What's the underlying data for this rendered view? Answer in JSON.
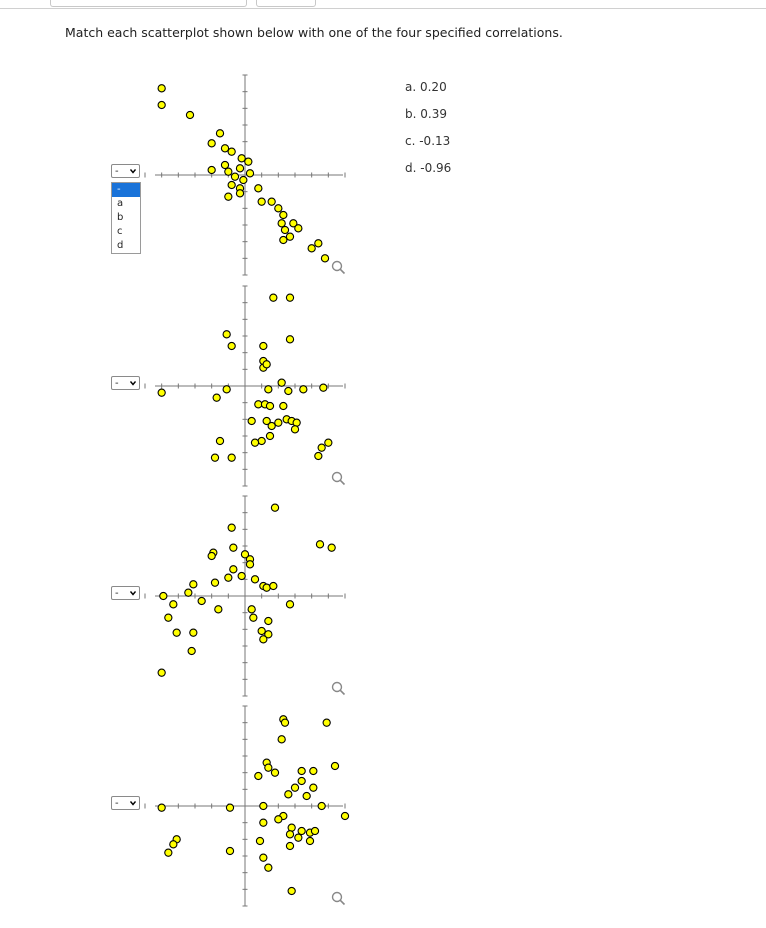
{
  "instruction": "Match each scatterplot shown below with one of the four specified correlations.",
  "answers": [
    "a. 0.20",
    "b. 0.39",
    "c. -0.13",
    "d. -0.96"
  ],
  "select_placeholder": "-",
  "menu_options": [
    "-",
    "a",
    "b",
    "c",
    "d"
  ],
  "colors": {
    "point_fill": "#ffff00",
    "point_stroke": "#000000",
    "axis": "#777777",
    "menu_highlight": "#1a73d9"
  },
  "chart_data": [
    {
      "type": "scatter",
      "xlim": [
        -6,
        6
      ],
      "ylim": [
        -6,
        6
      ],
      "grid": false,
      "magnifier_icon": "magnifier-icon",
      "points": [
        [
          -5,
          5.2
        ],
        [
          -5,
          4.2
        ],
        [
          -3.3,
          3.6
        ],
        [
          -1.5,
          2.5
        ],
        [
          -2,
          1.9
        ],
        [
          -1.2,
          1.6
        ],
        [
          -0.8,
          1.4
        ],
        [
          -0.2,
          1.0
        ],
        [
          0.2,
          0.8
        ],
        [
          -1.2,
          0.6
        ],
        [
          -2.0,
          0.3
        ],
        [
          -1.0,
          0.2
        ],
        [
          -0.6,
          -0.1
        ],
        [
          -0.3,
          0.4
        ],
        [
          0.3,
          0.1
        ],
        [
          -0.1,
          -0.3
        ],
        [
          -0.8,
          -0.6
        ],
        [
          -0.3,
          -0.8
        ],
        [
          -0.3,
          -1.1
        ],
        [
          -1.0,
          -1.3
        ],
        [
          0.8,
          -0.8
        ],
        [
          1.0,
          -1.6
        ],
        [
          1.6,
          -1.6
        ],
        [
          2.0,
          -2.0
        ],
        [
          2.3,
          -2.4
        ],
        [
          2.2,
          -2.9
        ],
        [
          2.4,
          -3.3
        ],
        [
          2.9,
          -2.9
        ],
        [
          3.2,
          -3.2
        ],
        [
          2.7,
          -3.7
        ],
        [
          2.3,
          -3.9
        ],
        [
          4.0,
          -4.4
        ],
        [
          4.4,
          -4.1
        ],
        [
          4.8,
          -5.0
        ]
      ]
    },
    {
      "type": "scatter",
      "xlim": [
        -6,
        6
      ],
      "ylim": [
        -6,
        6
      ],
      "grid": false,
      "magnifier_icon": "magnifier-icon",
      "points": [
        [
          1.7,
          5.3
        ],
        [
          2.7,
          5.3
        ],
        [
          -1.1,
          3.1
        ],
        [
          -0.8,
          2.4
        ],
        [
          1.1,
          2.4
        ],
        [
          2.7,
          2.8
        ],
        [
          1.1,
          1.5
        ],
        [
          1.1,
          1.1
        ],
        [
          1.3,
          1.3
        ],
        [
          -5.0,
          -0.4
        ],
        [
          -1.7,
          -0.7
        ],
        [
          -1.1,
          -0.2
        ],
        [
          1.4,
          -0.2
        ],
        [
          2.2,
          0.2
        ],
        [
          2.6,
          -0.3
        ],
        [
          3.5,
          -0.2
        ],
        [
          4.7,
          -0.1
        ],
        [
          0.8,
          -1.1
        ],
        [
          1.2,
          -1.1
        ],
        [
          1.5,
          -1.2
        ],
        [
          2.3,
          -1.2
        ],
        [
          0.4,
          -2.1
        ],
        [
          1.3,
          -2.1
        ],
        [
          1.6,
          -2.4
        ],
        [
          2.0,
          -2.2
        ],
        [
          2.5,
          -2.0
        ],
        [
          2.8,
          -2.1
        ],
        [
          3.1,
          -2.2
        ],
        [
          3.0,
          -2.6
        ],
        [
          1.5,
          -3.0
        ],
        [
          1.0,
          -3.3
        ],
        [
          0.6,
          -3.4
        ],
        [
          -1.5,
          -3.3
        ],
        [
          -1.8,
          -4.3
        ],
        [
          -0.8,
          -4.3
        ],
        [
          4.4,
          -4.2
        ],
        [
          4.6,
          -3.7
        ],
        [
          5.0,
          -3.4
        ]
      ]
    },
    {
      "type": "scatter",
      "xlim": [
        -6,
        6
      ],
      "ylim": [
        -6,
        6
      ],
      "grid": false,
      "magnifier_icon": "magnifier-icon",
      "points": [
        [
          1.8,
          5.3
        ],
        [
          -0.8,
          4.1
        ],
        [
          -0.7,
          2.9
        ],
        [
          4.5,
          3.1
        ],
        [
          5.2,
          2.9
        ],
        [
          -1.9,
          2.6
        ],
        [
          -2.0,
          2.4
        ],
        [
          0.3,
          2.2
        ],
        [
          0.0,
          2.5
        ],
        [
          -0.7,
          1.6
        ],
        [
          0.3,
          1.9
        ],
        [
          -0.2,
          1.2
        ],
        [
          -1.0,
          1.1
        ],
        [
          -1.8,
          0.8
        ],
        [
          0.6,
          1.0
        ],
        [
          1.1,
          0.6
        ],
        [
          1.3,
          0.5
        ],
        [
          1.7,
          0.6
        ],
        [
          -3.1,
          0.7
        ],
        [
          -3.4,
          0.2
        ],
        [
          -2.6,
          -0.3
        ],
        [
          -4.9,
          0
        ],
        [
          -4.3,
          -0.5
        ],
        [
          -4.6,
          -1.3
        ],
        [
          -1.6,
          -0.8
        ],
        [
          0.4,
          -0.8
        ],
        [
          0.5,
          -1.3
        ],
        [
          1.4,
          -1.5
        ],
        [
          1.0,
          -2.1
        ],
        [
          1.4,
          -2.3
        ],
        [
          1.1,
          -2.6
        ],
        [
          2.7,
          -0.5
        ],
        [
          -3.1,
          -2.2
        ],
        [
          -4.1,
          -2.2
        ],
        [
          -3.2,
          -3.3
        ],
        [
          -5.0,
          -4.6
        ]
      ]
    },
    {
      "type": "scatter",
      "xlim": [
        -6,
        6
      ],
      "ylim": [
        -6,
        6
      ],
      "grid": false,
      "magnifier_icon": "magnifier-icon",
      "points": [
        [
          2.3,
          5.2
        ],
        [
          2.4,
          5.0
        ],
        [
          4.9,
          5.0
        ],
        [
          2.2,
          4.0
        ],
        [
          1.3,
          2.6
        ],
        [
          1.4,
          2.3
        ],
        [
          1.8,
          2.0
        ],
        [
          3.4,
          2.1
        ],
        [
          4.1,
          2.1
        ],
        [
          5.4,
          2.4
        ],
        [
          0.8,
          1.8
        ],
        [
          3.0,
          1.1
        ],
        [
          3.4,
          1.5
        ],
        [
          4.1,
          1.1
        ],
        [
          2.6,
          0.7
        ],
        [
          3.7,
          0.6
        ],
        [
          -5.0,
          -0.1
        ],
        [
          -0.9,
          -0.1
        ],
        [
          1.1,
          0
        ],
        [
          4.6,
          0
        ],
        [
          2.3,
          -0.6
        ],
        [
          2.0,
          -0.8
        ],
        [
          6.0,
          -0.6
        ],
        [
          1.1,
          -1.0
        ],
        [
          2.8,
          -1.3
        ],
        [
          3.4,
          -1.5
        ],
        [
          3.9,
          -1.6
        ],
        [
          4.2,
          -1.5
        ],
        [
          2.7,
          -1.7
        ],
        [
          3.2,
          -1.9
        ],
        [
          3.9,
          -2.1
        ],
        [
          2.7,
          -2.4
        ],
        [
          0.9,
          -2.1
        ],
        [
          1.1,
          -3.1
        ],
        [
          1.4,
          -3.7
        ],
        [
          -4.1,
          -2.0
        ],
        [
          -4.3,
          -2.3
        ],
        [
          -4.6,
          -2.8
        ],
        [
          -0.9,
          -2.7
        ],
        [
          2.8,
          -5.1
        ]
      ]
    }
  ]
}
